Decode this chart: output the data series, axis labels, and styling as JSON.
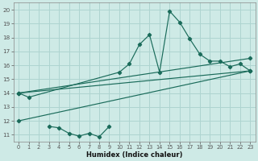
{
  "background_color": "#ceeae6",
  "grid_color": "#aed4d0",
  "line_color": "#1a6b5a",
  "xlabel": "Humidex (Indice chaleur)",
  "xlim": [
    -0.5,
    23.5
  ],
  "ylim": [
    10.5,
    20.5
  ],
  "xticks": [
    0,
    1,
    2,
    3,
    4,
    5,
    6,
    7,
    8,
    9,
    10,
    11,
    12,
    13,
    14,
    15,
    16,
    17,
    18,
    19,
    20,
    21,
    22,
    23
  ],
  "yticks": [
    11,
    12,
    13,
    14,
    15,
    16,
    17,
    18,
    19,
    20
  ],
  "series": [
    {
      "x": [
        0,
        1,
        10,
        11,
        12,
        13,
        14,
        15,
        16,
        17,
        18,
        19,
        20,
        21,
        22,
        23
      ],
      "y": [
        14,
        13.7,
        15.5,
        16.1,
        17.5,
        18.2,
        15.5,
        19.9,
        19.1,
        17.9,
        16.8,
        16.3,
        16.3,
        15.9,
        16.1,
        15.6
      ]
    },
    {
      "x": [
        0,
        23
      ],
      "y": [
        14,
        16.5
      ]
    },
    {
      "x": [
        0,
        23
      ],
      "y": [
        14,
        15.6
      ]
    },
    {
      "x": [
        0,
        23
      ],
      "y": [
        12,
        15.6
      ]
    },
    {
      "x": [
        3,
        4,
        5,
        6,
        7,
        8,
        9
      ],
      "y": [
        11.6,
        11.5,
        11.1,
        10.9,
        11.1,
        10.85,
        11.6
      ]
    }
  ]
}
